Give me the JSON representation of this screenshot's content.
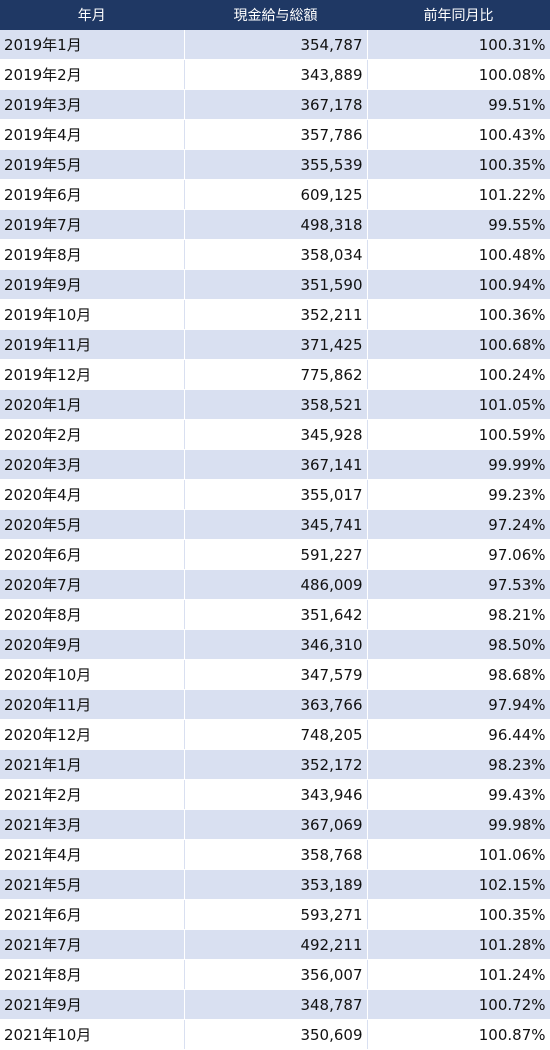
{
  "headers": [
    "年月",
    "現金給与総額",
    "前年同月比"
  ],
  "rows": [
    [
      "2019年1月",
      "354,787",
      "100.31%"
    ],
    [
      "2019年2月",
      "343,889",
      "100.08%"
    ],
    [
      "2019年3月",
      "367,178",
      "99.51%"
    ],
    [
      "2019年4月",
      "357,786",
      "100.43%"
    ],
    [
      "2019年5月",
      "355,539",
      "100.35%"
    ],
    [
      "2019年6月",
      "609,125",
      "101.22%"
    ],
    [
      "2019年7月",
      "498,318",
      "99.55%"
    ],
    [
      "2019年8月",
      "358,034",
      "100.48%"
    ],
    [
      "2019年9月",
      "351,590",
      "100.94%"
    ],
    [
      "2019年10月",
      "352,211",
      "100.36%"
    ],
    [
      "2019年11月",
      "371,425",
      "100.68%"
    ],
    [
      "2019年12月",
      "775,862",
      "100.24%"
    ],
    [
      "2020年1月",
      "358,521",
      "101.05%"
    ],
    [
      "2020年2月",
      "345,928",
      "100.59%"
    ],
    [
      "2020年3月",
      "367,141",
      "99.99%"
    ],
    [
      "2020年4月",
      "355,017",
      "99.23%"
    ],
    [
      "2020年5月",
      "345,741",
      "97.24%"
    ],
    [
      "2020年6月",
      "591,227",
      "97.06%"
    ],
    [
      "2020年7月",
      "486,009",
      "97.53%"
    ],
    [
      "2020年8月",
      "351,642",
      "98.21%"
    ],
    [
      "2020年9月",
      "346,310",
      "98.50%"
    ],
    [
      "2020年10月",
      "347,579",
      "98.68%"
    ],
    [
      "2020年11月",
      "363,766",
      "97.94%"
    ],
    [
      "2020年12月",
      "748,205",
      "96.44%"
    ],
    [
      "2021年1月",
      "352,172",
      "98.23%"
    ],
    [
      "2021年2月",
      "343,946",
      "99.43%"
    ],
    [
      "2021年3月",
      "367,069",
      "99.98%"
    ],
    [
      "2021年4月",
      "358,768",
      "101.06%"
    ],
    [
      "2021年5月",
      "353,189",
      "102.15%"
    ],
    [
      "2021年6月",
      "593,271",
      "100.35%"
    ],
    [
      "2021年7月",
      "492,211",
      "101.28%"
    ],
    [
      "2021年8月",
      "356,007",
      "101.24%"
    ],
    [
      "2021年9月",
      "348,787",
      "100.72%"
    ],
    [
      "2021年10月",
      "350,609",
      "100.87%"
    ]
  ],
  "colors": {
    "header_bg": "#1f3864",
    "header_text": "#ffffff",
    "band_row": "#d9e0f1",
    "plain_row": "#ffffff"
  }
}
